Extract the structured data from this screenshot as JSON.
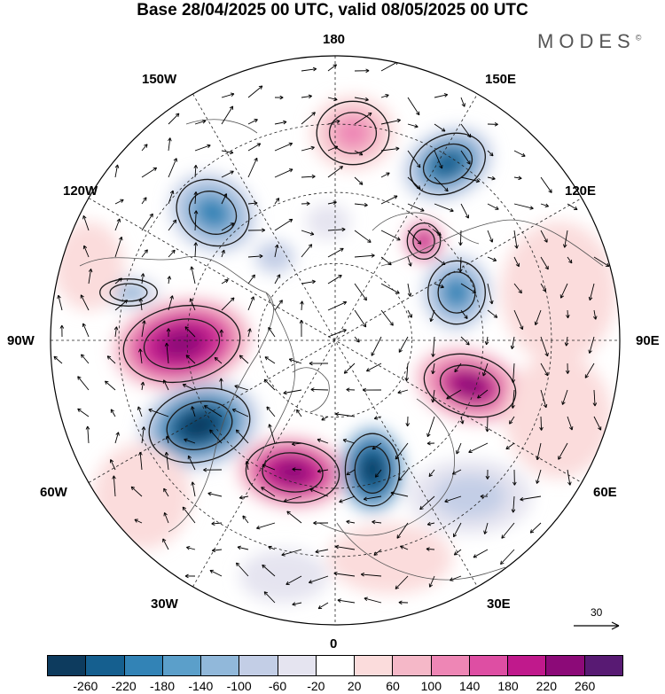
{
  "title": "Base 28/04/2025 00 UTC, valid 08/05/2025 00 UTC",
  "brand": "MODES",
  "brand_mark": "©",
  "map": {
    "projection": "north-polar-stereographic",
    "longitude_labels": {
      "top": "180",
      "top_left": "150W",
      "top_right": "150E",
      "upper_left": "120W",
      "upper_right": "120E",
      "left": "90W",
      "right": "90E",
      "lower_left": "60W",
      "lower_right": "60E",
      "bottom_left": "30W",
      "bottom_right": "30E",
      "bottom": "0"
    },
    "reference_vector_label": "30"
  },
  "colorbar": {
    "tick_labels": [
      "-260",
      "-220",
      "-180",
      "-140",
      "-100",
      "-60",
      "-20",
      "20",
      "60",
      "100",
      "140",
      "180",
      "220",
      "260"
    ],
    "colors": [
      "#0d3b5e",
      "#155f8f",
      "#3283b6",
      "#5b9fca",
      "#91b8da",
      "#c3cee6",
      "#e5e4f0",
      "#ffffff",
      "#fbdcdc",
      "#f5b8c8",
      "#ee86b5",
      "#de4ea3",
      "#c0198c",
      "#8c0a78",
      "#581a73"
    ]
  }
}
